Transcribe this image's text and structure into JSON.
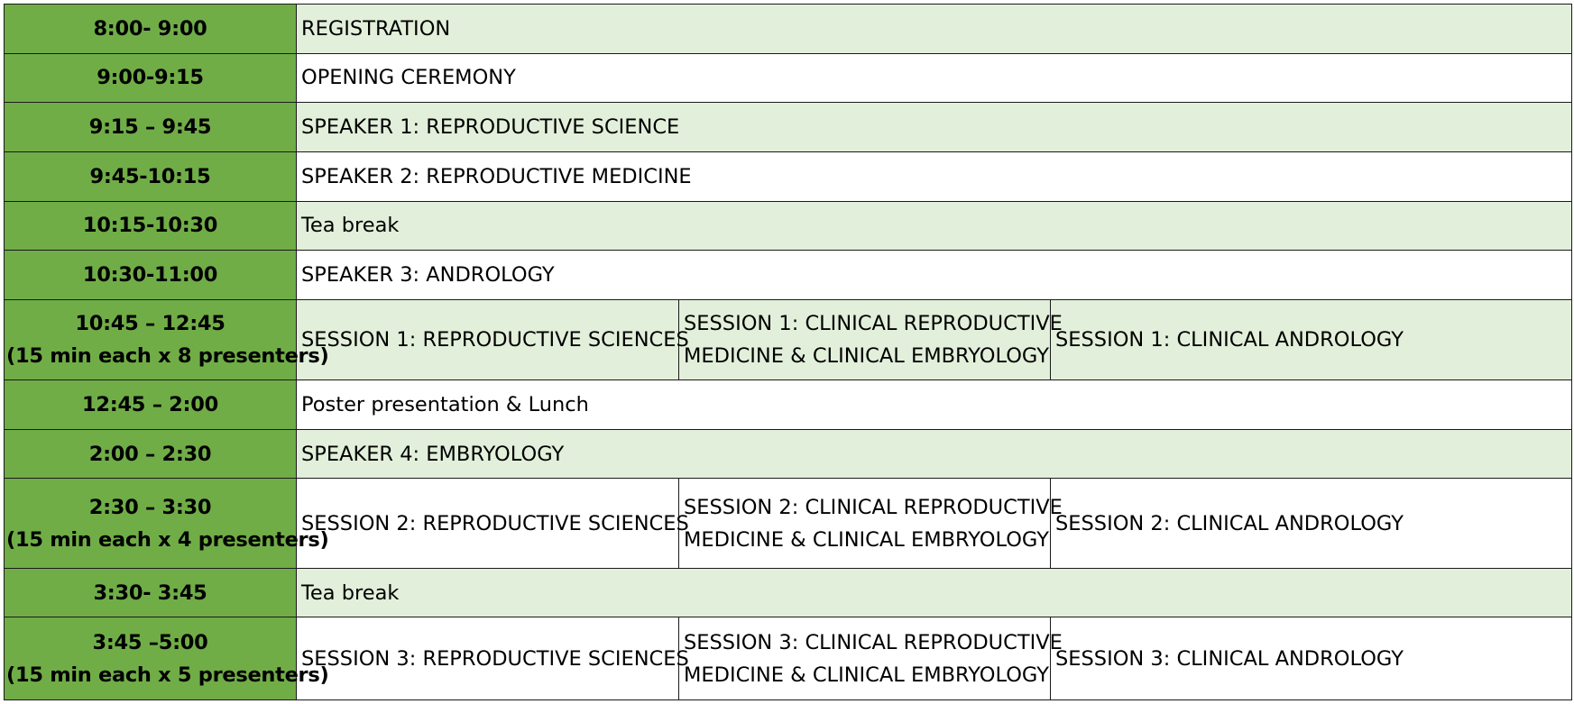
{
  "rows": [
    {
      "time": "8:00- 9:00",
      "item": "REGISTRATION"
    },
    {
      "time": "9:00-9:15",
      "item": "OPENING CEREMONY"
    },
    {
      "time": "9:15 – 9:45",
      "item": "SPEAKER 1: REPRODUCTIVE SCIENCE"
    },
    {
      "time": "9:45-10:15",
      "item": "SPEAKER 2: REPRODUCTIVE MEDICINE"
    },
    {
      "time": "10:15-10:30",
      "item": "Tea  break"
    },
    {
      "time": "10:30-11:00",
      "item": "SPEAKER 3: ANDROLOGY"
    },
    {
      "time": "10:45 – 12:45",
      "time_note": "(15 min each x 8 presenters)",
      "tracks": [
        {
          "lines": [
            "SESSION 1: REPRODUCTIVE SCIENCES"
          ]
        },
        {
          "lines": [
            "SESSION 1: CLINICAL  REPRODUCTIVE",
            "MEDICINE & CLINICAL EMBRYOLOGY"
          ]
        },
        {
          "lines": [
            "SESSION 1: CLINICAL ANDROLOGY"
          ]
        }
      ]
    },
    {
      "time": "12:45 – 2:00",
      "item": "Poster presentation & Lunch"
    },
    {
      "time": "2:00 – 2:30",
      "item": "SPEAKER 4: EMBRYOLOGY"
    },
    {
      "time": "2:30 – 3:30",
      "time_note": "(15 min each x 4 presenters)",
      "tracks": [
        {
          "lines": [
            "SESSION 2: REPRODUCTIVE SCIENCES"
          ]
        },
        {
          "lines": [
            "SESSION 2: CLINICAL  REPRODUCTIVE",
            "MEDICINE & CLINICAL EMBRYOLOGY"
          ]
        },
        {
          "lines": [
            "SESSION 2: CLINICAL ANDROLOGY"
          ]
        }
      ]
    },
    {
      "time": "3:30- 3:45",
      "item": "Tea break"
    },
    {
      "time": "3:45 –5:00",
      "time_note": "(15 min each x 5 presenters)",
      "tracks": [
        {
          "lines": [
            "SESSION 3: REPRODUCTIVE SCIENCES"
          ]
        },
        {
          "lines": [
            "SESSION 3: CLINICAL  REPRODUCTIVE",
            "MEDICINE & CLINICAL EMBRYOLOGY"
          ]
        },
        {
          "lines": [
            "SESSION 3: CLINICAL ANDROLOGY"
          ]
        }
      ]
    }
  ],
  "colors": {
    "time_column": "#70ad47",
    "shaded_row": "#e2efda",
    "plain_row": "#ffffff",
    "grid": "#1a1a1a"
  }
}
